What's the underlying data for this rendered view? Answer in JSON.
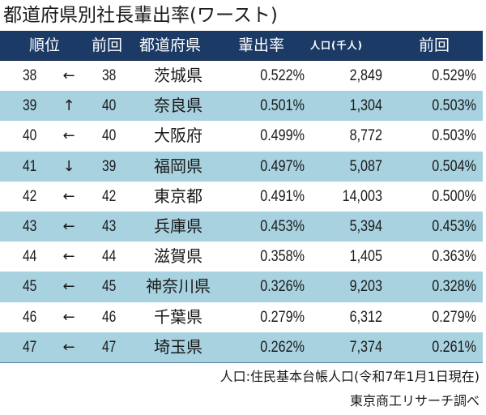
{
  "title": "都道府県別社長輩出率(ワースト)",
  "header": {
    "rank": "順位",
    "prev_rank": "前回",
    "prefecture": "都道府県",
    "rate": "輩出率",
    "population": "人口(千人)",
    "prev_rate": "前回"
  },
  "rows": [
    {
      "rank": "38",
      "arrow": "←",
      "prev_rank": "38",
      "prefecture": "茨城県",
      "rate": "0.522%",
      "population": "2,849",
      "prev_rate": "0.529%"
    },
    {
      "rank": "39",
      "arrow": "↑",
      "prev_rank": "40",
      "prefecture": "奈良県",
      "rate": "0.501%",
      "population": "1,304",
      "prev_rate": "0.503%"
    },
    {
      "rank": "40",
      "arrow": "←",
      "prev_rank": "40",
      "prefecture": "大阪府",
      "rate": "0.499%",
      "population": "8,772",
      "prev_rate": "0.503%"
    },
    {
      "rank": "41",
      "arrow": "↓",
      "prev_rank": "39",
      "prefecture": "福岡県",
      "rate": "0.497%",
      "population": "5,087",
      "prev_rate": "0.504%"
    },
    {
      "rank": "42",
      "arrow": "←",
      "prev_rank": "42",
      "prefecture": "東京都",
      "rate": "0.491%",
      "population": "14,003",
      "prev_rate": "0.500%"
    },
    {
      "rank": "43",
      "arrow": "←",
      "prev_rank": "43",
      "prefecture": "兵庫県",
      "rate": "0.453%",
      "population": "5,394",
      "prev_rate": "0.453%"
    },
    {
      "rank": "44",
      "arrow": "←",
      "prev_rank": "44",
      "prefecture": "滋賀県",
      "rate": "0.358%",
      "population": "1,405",
      "prev_rate": "0.363%"
    },
    {
      "rank": "45",
      "arrow": "←",
      "prev_rank": "45",
      "prefecture": "神奈川県",
      "rate": "0.326%",
      "population": "9,203",
      "prev_rate": "0.328%"
    },
    {
      "rank": "46",
      "arrow": "←",
      "prev_rank": "46",
      "prefecture": "千葉県",
      "rate": "0.279%",
      "population": "6,312",
      "prev_rate": "0.279%"
    },
    {
      "rank": "47",
      "arrow": "←",
      "prev_rank": "47",
      "prefecture": "埼玉県",
      "rate": "0.262%",
      "population": "7,374",
      "prev_rate": "0.261%"
    }
  ],
  "footer": {
    "note": "人口:住民基本台帳人口(令和7年1月1日現在)",
    "source": "東京商工リサーチ調べ"
  },
  "colors": {
    "header_bg": "#1b3a66",
    "alt_row_bg": "#a8d2e0",
    "row_bg": "#ffffff"
  }
}
